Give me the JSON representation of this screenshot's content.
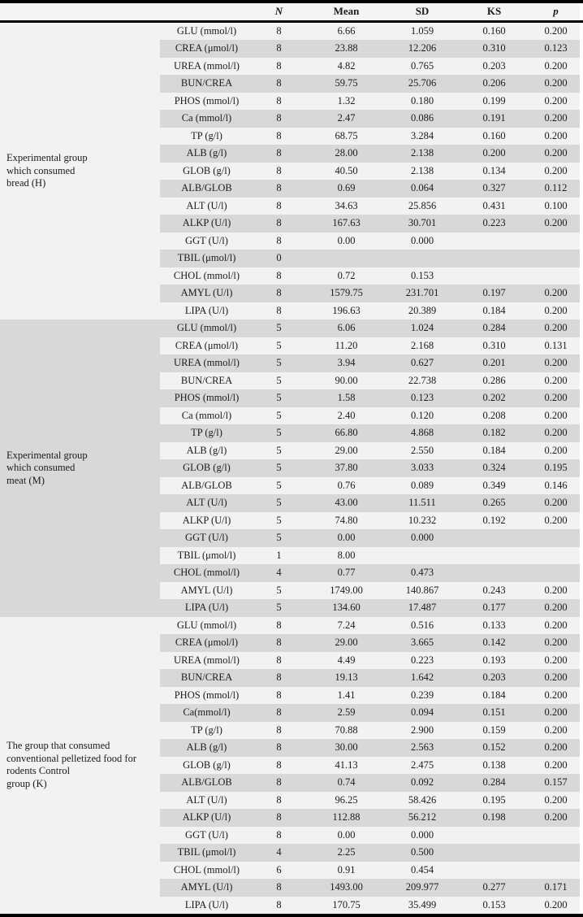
{
  "table": {
    "columns": {
      "param": "",
      "n": "N",
      "mean": "Mean",
      "sd": "SD",
      "ks": "KS",
      "p": "p"
    },
    "colors": {
      "stripe_gray": "#d8d8d8",
      "row_light": "#f2f2f2",
      "border_black": "#000000"
    },
    "groups": [
      {
        "id": "H",
        "label": "Experimental group\nwhich consumed\nbread (H)",
        "label_shaded": false,
        "rows": [
          [
            "GLU (mmol/l)",
            "8",
            "6.66",
            "1.059",
            "0.160",
            "0.200"
          ],
          [
            "CREA (μmol/l)",
            "8",
            "23.88",
            "12.206",
            "0.310",
            "0.123"
          ],
          [
            "UREA (mmol/l)",
            "8",
            "4.82",
            "0.765",
            "0.203",
            "0.200"
          ],
          [
            "BUN/CREA",
            "8",
            "59.75",
            "25.706",
            "0.206",
            "0.200"
          ],
          [
            "PHOS (mmol/l)",
            "8",
            "1.32",
            "0.180",
            "0.199",
            "0.200"
          ],
          [
            "Ca (mmol/l)",
            "8",
            "2.47",
            "0.086",
            "0.191",
            "0.200"
          ],
          [
            "TP (g/l)",
            "8",
            "68.75",
            "3.284",
            "0.160",
            "0.200"
          ],
          [
            "ALB (g/l)",
            "8",
            "28.00",
            "2.138",
            "0.200",
            "0.200"
          ],
          [
            "GLOB (g/l)",
            "8",
            "40.50",
            "2.138",
            "0.134",
            "0.200"
          ],
          [
            "ALB/GLOB",
            "8",
            "0.69",
            "0.064",
            "0.327",
            "0.112"
          ],
          [
            "ALT (U/l)",
            "8",
            "34.63",
            "25.856",
            "0.431",
            "0.100"
          ],
          [
            "ALKP (U/l)",
            "8",
            "167.63",
            "30.701",
            "0.223",
            "0.200"
          ],
          [
            "GGT (U/l)",
            "8",
            "0.00",
            "0.000",
            "",
            ""
          ],
          [
            "TBIL (μmol/l)",
            "0",
            "",
            "",
            "",
            ""
          ],
          [
            "CHOL (mmol/l)",
            "8",
            "0.72",
            "0.153",
            "",
            ""
          ],
          [
            "AMYL (U/l)",
            "8",
            "1579.75",
            "231.701",
            "0.197",
            "0.200"
          ],
          [
            "LIPA (U/l)",
            "8",
            "196.63",
            "20.389",
            "0.184",
            "0.200"
          ]
        ]
      },
      {
        "id": "M",
        "label": "Experimental group\nwhich consumed\nmeat (M)",
        "label_shaded": true,
        "rows": [
          [
            "GLU (mmol/l)",
            "5",
            "6.06",
            "1.024",
            "0.284",
            "0.200"
          ],
          [
            "CREA (μmol/l)",
            "5",
            "11.20",
            "2.168",
            "0.310",
            "0.131"
          ],
          [
            "UREA (mmol/l)",
            "5",
            "3.94",
            "0.627",
            "0.201",
            "0.200"
          ],
          [
            "BUN/CREA",
            "5",
            "90.00",
            "22.738",
            "0.286",
            "0.200"
          ],
          [
            "PHOS (mmol/l)",
            "5",
            "1.58",
            "0.123",
            "0.202",
            "0.200"
          ],
          [
            "Ca (mmol/l)",
            "5",
            "2.40",
            "0.120",
            "0.208",
            "0.200"
          ],
          [
            "TP (g/l)",
            "5",
            "66.80",
            "4.868",
            "0.182",
            "0.200"
          ],
          [
            "ALB (g/l)",
            "5",
            "29.00",
            "2.550",
            "0.184",
            "0.200"
          ],
          [
            "GLOB (g/l)",
            "5",
            "37.80",
            "3.033",
            "0.324",
            "0.195"
          ],
          [
            "ALB/GLOB",
            "5",
            "0.76",
            "0.089",
            "0.349",
            "0.146"
          ],
          [
            "ALT (U/l)",
            "5",
            "43.00",
            "11.511",
            "0.265",
            "0.200"
          ],
          [
            "ALKP (U/l)",
            "5",
            "74.80",
            "10.232",
            "0.192",
            "0.200"
          ],
          [
            "GGT (U/l)",
            "5",
            "0.00",
            "0.000",
            "",
            ""
          ],
          [
            "TBIL (μmol/l)",
            "1",
            "8.00",
            "",
            "",
            ""
          ],
          [
            "CHOL (mmol/l)",
            "4",
            "0.77",
            "0.473",
            "",
            ""
          ],
          [
            "AMYL (U/l)",
            "5",
            "1749.00",
            "140.867",
            "0.243",
            "0.200"
          ],
          [
            "LIPA (U/l)",
            "5",
            "134.60",
            "17.487",
            "0.177",
            "0.200"
          ]
        ]
      },
      {
        "id": "K",
        "label": "The group that consumed\nconventional pelletized food for\nrodents Control\ngroup (K)",
        "label_shaded": false,
        "rows": [
          [
            "GLU (mmol/l)",
            "8",
            "7.24",
            "0.516",
            "0.133",
            "0.200"
          ],
          [
            "CREA (μmol/l)",
            "8",
            "29.00",
            "3.665",
            "0.142",
            "0.200"
          ],
          [
            "UREA (mmol/l)",
            "8",
            "4.49",
            "0.223",
            "0.193",
            "0.200"
          ],
          [
            "BUN/CREA",
            "8",
            "19.13",
            "1.642",
            "0.203",
            "0.200"
          ],
          [
            "PHOS (mmol/l)",
            "8",
            "1.41",
            "0.239",
            "0.184",
            "0.200"
          ],
          [
            "Ca(mmol/l)",
            "8",
            "2.59",
            "0.094",
            "0.151",
            "0.200"
          ],
          [
            "TP (g/l)",
            "8",
            "70.88",
            "2.900",
            "0.159",
            "0.200"
          ],
          [
            "ALB (g/l)",
            "8",
            "30.00",
            "2.563",
            "0.152",
            "0.200"
          ],
          [
            "GLOB (g/l)",
            "8",
            "41.13",
            "2.475",
            "0.138",
            "0.200"
          ],
          [
            "ALB/GLOB",
            "8",
            "0.74",
            "0.092",
            "0.284",
            "0.157"
          ],
          [
            "ALT (U/l)",
            "8",
            "96.25",
            "58.426",
            "0.195",
            "0.200"
          ],
          [
            "ALKP (U/l)",
            "8",
            "112.88",
            "56.212",
            "0.198",
            "0.200"
          ],
          [
            "GGT (U/l)",
            "8",
            "0.00",
            "0.000",
            "",
            ""
          ],
          [
            "TBIL (μmol/l)",
            "4",
            "2.25",
            "0.500",
            "",
            ""
          ],
          [
            "CHOL (mmol/l)",
            "6",
            "0.91",
            "0.454",
            "",
            ""
          ],
          [
            "AMYL (U/l)",
            "8",
            "1493.00",
            "209.977",
            "0.277",
            "0.171"
          ],
          [
            "LIPA (U/l)",
            "8",
            "170.75",
            "35.499",
            "0.153",
            "0.200"
          ]
        ]
      }
    ]
  }
}
